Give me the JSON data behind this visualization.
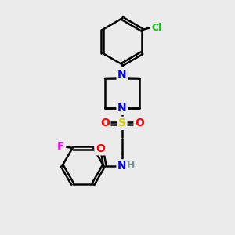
{
  "bg_color": "#ebebeb",
  "bond_color": "#000000",
  "bond_width": 1.8,
  "atom_colors": {
    "N": "#0000FF",
    "O": "#FF0000",
    "S": "#CCCC00",
    "F": "#FF00FF",
    "Cl": "#00CC00",
    "H": "#7a9a9a",
    "C": "#000000"
  },
  "font_size": 9,
  "fig_size": [
    3.0,
    3.0
  ],
  "dpi": 100
}
